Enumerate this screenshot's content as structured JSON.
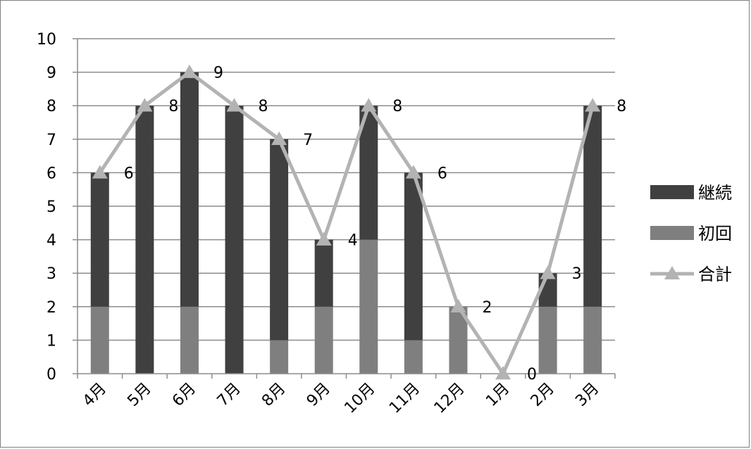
{
  "chart_data": {
    "type": "bar",
    "stacked": true,
    "categories": [
      "4月",
      "5月",
      "6月",
      "7月",
      "8月",
      "9月",
      "10月",
      "11月",
      "12月",
      "1月",
      "2月",
      "3月"
    ],
    "series": [
      {
        "name": "初回",
        "type": "bar",
        "color": "#7f7f7f",
        "values": [
          2,
          0,
          2,
          0,
          1,
          2,
          4,
          1,
          2,
          0,
          2,
          2
        ]
      },
      {
        "name": "継続",
        "type": "bar",
        "color": "#404040",
        "values": [
          4,
          8,
          7,
          8,
          6,
          2,
          4,
          5,
          0,
          0,
          1,
          6
        ]
      },
      {
        "name": "合計",
        "type": "line",
        "color": "#b3b3b3",
        "marker": "triangle",
        "values": [
          6,
          8,
          9,
          8,
          7,
          4,
          8,
          6,
          2,
          0,
          3,
          8
        ]
      }
    ],
    "data_labels": [
      "6",
      "8",
      "9",
      "8",
      "7",
      "4",
      "8",
      "6",
      "2",
      "0",
      "3",
      "8"
    ],
    "yticks": [
      "0",
      "1",
      "2",
      "3",
      "4",
      "5",
      "6",
      "7",
      "8",
      "9",
      "10"
    ],
    "ylim": [
      0,
      10
    ],
    "grid": true,
    "legend": {
      "position": "right",
      "entries": [
        {
          "label": "継続",
          "color": "#404040",
          "kind": "bar"
        },
        {
          "label": "初回",
          "color": "#7f7f7f",
          "kind": "bar"
        },
        {
          "label": "合計",
          "color": "#b3b3b3",
          "kind": "line"
        }
      ]
    }
  }
}
